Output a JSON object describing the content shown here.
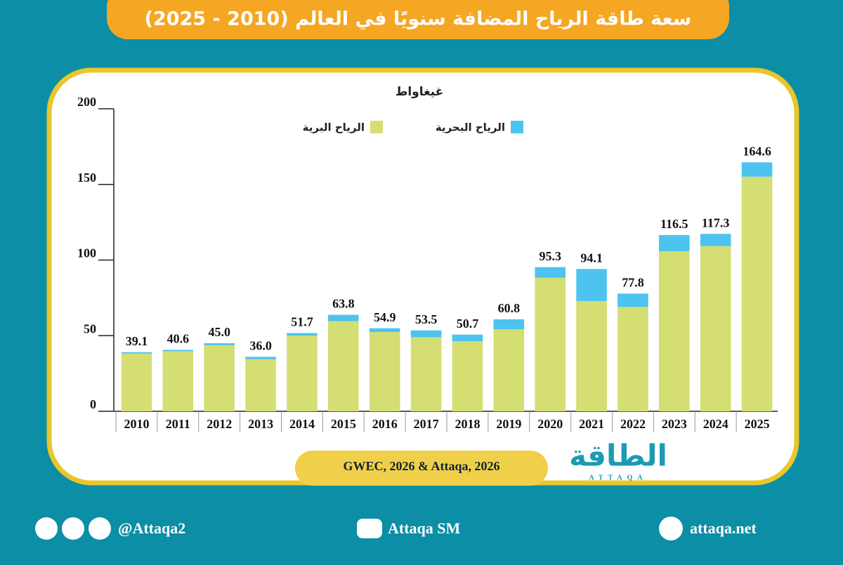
{
  "chart_data": {
    "type": "stacked-bar",
    "title": "سعة طاقة الرياح المضافة سنويًا في العالم (2010 - 2025)",
    "y_label": "غيغاواط",
    "categories": [
      "2010",
      "2011",
      "2012",
      "2013",
      "2014",
      "2015",
      "2016",
      "2017",
      "2018",
      "2019",
      "2020",
      "2021",
      "2022",
      "2023",
      "2024",
      "2025"
    ],
    "series": [
      {
        "name": "الرياح البرية",
        "color": "#d4de72",
        "values": [
          38.2,
          39.7,
          43.7,
          34.4,
          50.0,
          59.6,
          52.4,
          49.0,
          46.3,
          54.2,
          88.4,
          72.9,
          69.0,
          105.8,
          109.2,
          155.1
        ]
      },
      {
        "name": "الرياح البحرية",
        "color": "#4dc3ef",
        "values": [
          0.9,
          0.9,
          1.3,
          1.6,
          1.7,
          4.2,
          2.5,
          4.5,
          4.4,
          6.6,
          6.9,
          21.2,
          8.8,
          10.7,
          8.1,
          9.5
        ]
      }
    ],
    "totals": [
      39.1,
      40.6,
      45.0,
      36.0,
      51.7,
      63.8,
      54.9,
      53.5,
      50.7,
      60.8,
      95.3,
      94.1,
      77.8,
      116.5,
      117.3,
      164.6
    ],
    "total_labels": [
      "39.1",
      "40.6",
      "45.0",
      "36.0",
      "51.7",
      "63.8",
      "54.9",
      "53.5",
      "50.7",
      "60.8",
      "95.3",
      "94.1",
      "77.8",
      "116.5",
      "117.3",
      "164.6"
    ],
    "ylim": [
      0,
      200
    ],
    "yticks": [
      0,
      50,
      100,
      150,
      200
    ],
    "source": "GWEC, 2026 & Attaqa, 2026"
  },
  "logo": {
    "name": "الطاقة",
    "latin": "ATTAQA"
  },
  "footer": {
    "social": "@Attaqa2",
    "youtube": "Attaqa SM",
    "web": "attaqa.net"
  }
}
